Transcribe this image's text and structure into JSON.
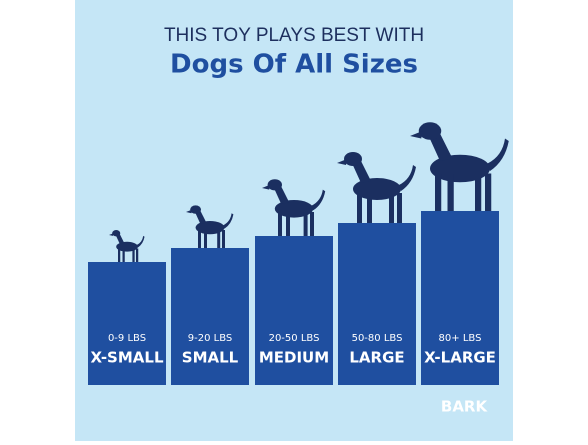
{
  "header": {
    "line1": "THIS TOY PLAYS BEST WITH",
    "line2": "Dogs Of All Sizes"
  },
  "tiers": [
    {
      "weight": "0-9 LBS",
      "size": "X-SMALL"
    },
    {
      "weight": "9-20 LBS",
      "size": "SMALL"
    },
    {
      "weight": "20-50 LBS",
      "size": "MEDIUM"
    },
    {
      "weight": "50-80 LBS",
      "size": "LARGE"
    },
    {
      "weight": "80+ LBS",
      "size": "X-LARGE"
    }
  ],
  "logo": "BARK"
}
